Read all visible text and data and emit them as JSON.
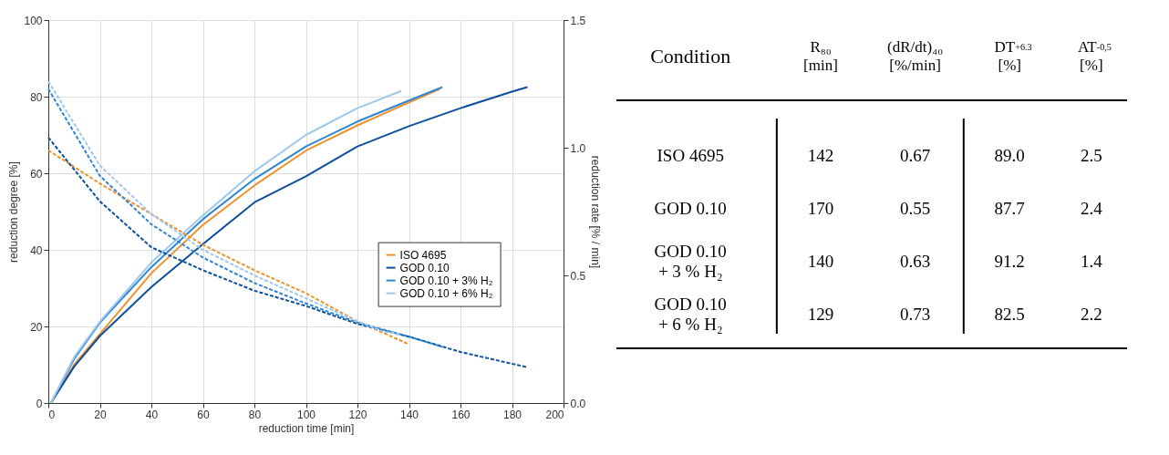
{
  "chart_data": [
    {
      "type": "line",
      "xlabel": "reduction time [min]",
      "ylabel": "reduction degree [%]",
      "y2label": "reduction rate [% / min]",
      "xlim": [
        0,
        200
      ],
      "xticks": [
        0,
        20,
        40,
        60,
        80,
        100,
        120,
        140,
        160,
        180,
        200
      ],
      "ylim": [
        0,
        100
      ],
      "yticks": [
        0,
        20,
        40,
        60,
        80,
        100
      ],
      "y2lim": [
        0,
        1.5
      ],
      "y2ticks": [
        {
          "value": 0,
          "label": "0.0"
        },
        {
          "value": 0.5,
          "label": "0.5"
        },
        {
          "value": 1,
          "label": "1.0"
        },
        {
          "value": 1.5,
          "label": "1.5"
        }
      ],
      "grid": true,
      "legend": "bottom right",
      "line_style": "solid",
      "series": [
        {
          "name": "ISO 4695",
          "color": "#f0912e",
          "axis": "y",
          "x": [
            1,
            10,
            20,
            40,
            60,
            80,
            100,
            120,
            140,
            152
          ],
          "values": [
            0,
            10,
            18,
            33.9,
            46.5,
            56.8,
            65.9,
            72.5,
            78.5,
            82
          ]
        },
        {
          "name": "GOD 0.10",
          "color": "#0d4f9c",
          "axis": "y",
          "x": [
            1,
            10,
            20,
            40,
            60,
            80,
            100,
            120,
            140,
            160,
            180,
            186
          ],
          "values": [
            0,
            9.5,
            17.5,
            30.3,
            41.5,
            52.4,
            59.2,
            67,
            72.3,
            77,
            81.3,
            82.5
          ]
        },
        {
          "name": "GOD 0.10 + 3% H₂",
          "color": "#2f86d1",
          "axis": "y",
          "x": [
            1,
            10,
            20,
            40,
            60,
            80,
            100,
            120,
            140,
            153
          ],
          "values": [
            0,
            11.5,
            21,
            35.5,
            48,
            58.5,
            67,
            73.5,
            79,
            82.5
          ]
        },
        {
          "name": "GOD 0.10 + 6% H₂",
          "color": "#9dc8ef",
          "axis": "y",
          "x": [
            1,
            10,
            20,
            40,
            60,
            80,
            100,
            120,
            137
          ],
          "values": [
            0,
            12,
            21.3,
            36.7,
            49,
            60.5,
            70,
            77,
            81.5
          ]
        },
        {
          "color": "#f0912e",
          "axis": "y2",
          "line_style": "dashed",
          "x": [
            0,
            20,
            40,
            60,
            80,
            100,
            120,
            140
          ],
          "values": [
            0.99,
            0.86,
            0.74,
            0.62,
            0.52,
            0.43,
            0.32,
            0.23
          ]
        },
        {
          "color": "#0d4f9c",
          "axis": "y2",
          "line_style": "dashed",
          "x": [
            0,
            20,
            40,
            60,
            80,
            100,
            120,
            140,
            160,
            186
          ],
          "values": [
            1.04,
            0.79,
            0.61,
            0.52,
            0.44,
            0.38,
            0.31,
            0.26,
            0.2,
            0.14
          ]
        },
        {
          "color": "#2f86d1",
          "axis": "y2",
          "line_style": "dashed",
          "x": [
            0,
            20,
            40,
            60,
            80,
            100,
            120,
            140,
            153
          ],
          "values": [
            1.23,
            0.89,
            0.7,
            0.57,
            0.47,
            0.39,
            0.315,
            0.26,
            0.22
          ]
        },
        {
          "color": "#9dc8ef",
          "axis": "y2",
          "line_style": "dashed",
          "x": [
            0,
            20,
            40,
            60,
            80,
            100,
            120,
            130,
            137
          ],
          "values": [
            1.26,
            0.93,
            0.74,
            0.6,
            0.5,
            0.41,
            0.32,
            0.28,
            0.27
          ]
        }
      ]
    },
    {
      "type": "other",
      "categories": [
        "Condition",
        "R₈₀\n[min]",
        "(dR/dt)₄₀\n[%/min]",
        "DT$_{+6.3}$\n[%]",
        "AT$_{-0,5}$\n[%]"
      ],
      "y_categories": [
        "ISO 4695",
        "GOD 0.10",
        "GOD 0.10\n+ 3 % H₂",
        "GOD 0.10\n+ 6 % H₂"
      ],
      "cell_labels": [
        [
          "142",
          "0.67",
          "89.0",
          "2.5"
        ],
        [
          "170",
          "0.55",
          "87.7",
          "2.4"
        ],
        [
          "140",
          "0.63",
          "91.2",
          "1.4"
        ],
        [
          "129",
          "0.73",
          "82.5",
          "2.2"
        ]
      ]
    }
  ]
}
